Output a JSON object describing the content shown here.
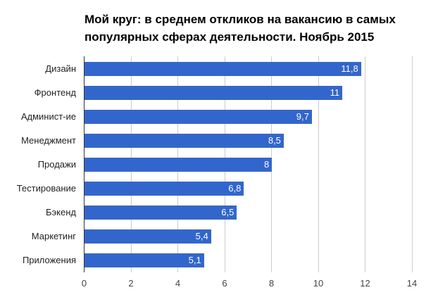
{
  "chart_data": {
    "type": "bar",
    "orientation": "horizontal",
    "title": "Мой круг: в среднем откликов на вакансию в самых популярных сферах деятельности. Ноябрь 2015",
    "title_lines": [
      "Мой круг: в среднем откликов на вакансию в самых",
      "популярных сферах деятельности. Ноябрь 2015"
    ],
    "categories": [
      "Дизайн",
      "Фронтенд",
      "Админист-ие",
      "Менеджмент",
      "Продажи",
      "Тестирование",
      "Бэкенд",
      "Маркетинг",
      "Приложения"
    ],
    "values": [
      11.8,
      11,
      9.7,
      8.5,
      8,
      6.8,
      6.5,
      5.4,
      5.1
    ],
    "value_labels": [
      "11,8",
      "11",
      "9,7",
      "8,5",
      "8",
      "6,8",
      "6,5",
      "5,4",
      "5,1"
    ],
    "xlabel": "",
    "ylabel": "",
    "xlim": [
      0,
      14
    ],
    "x_ticks": [
      "0",
      "2",
      "4",
      "6",
      "8",
      "10",
      "12",
      "14"
    ],
    "grid": true,
    "legend": "none",
    "bar_color": "#3366cc"
  }
}
